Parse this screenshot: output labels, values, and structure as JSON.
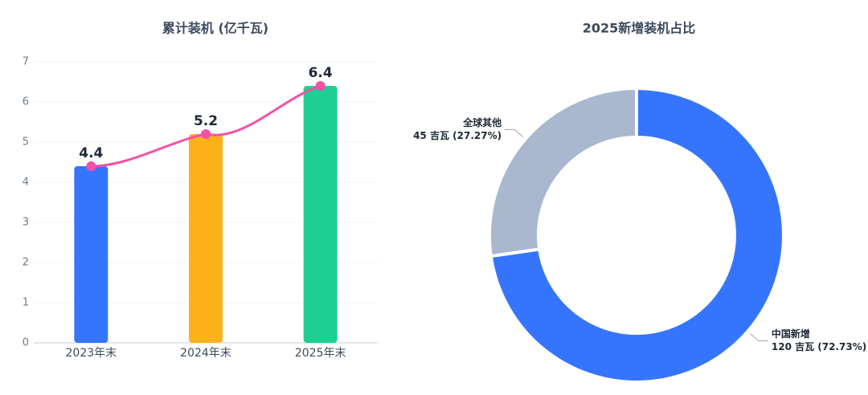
{
  "chart_data": [
    {
      "type": "bar",
      "title": "累计装机 (亿千瓦)",
      "categories": [
        "2023年末",
        "2024年末",
        "2025年末"
      ],
      "values": [
        4.4,
        5.2,
        6.4
      ],
      "colors": [
        "#3575fe",
        "#fdb119",
        "#1ccf93"
      ],
      "line_color": "#f451a5",
      "ylim": [
        0,
        7
      ],
      "yticks": [
        0,
        1,
        2,
        3,
        4,
        5,
        6,
        7
      ],
      "grid": true
    },
    {
      "type": "donut",
      "title": "2025新增装机占比",
      "categories": [
        "中国新增",
        "全球其他"
      ],
      "values": [
        120,
        45
      ],
      "value_labels": [
        "120 吉瓦 (72.73%)",
        "45 吉瓦 (27.27%)"
      ],
      "colors": [
        "#3575fe",
        "#a9b7cf"
      ]
    }
  ]
}
